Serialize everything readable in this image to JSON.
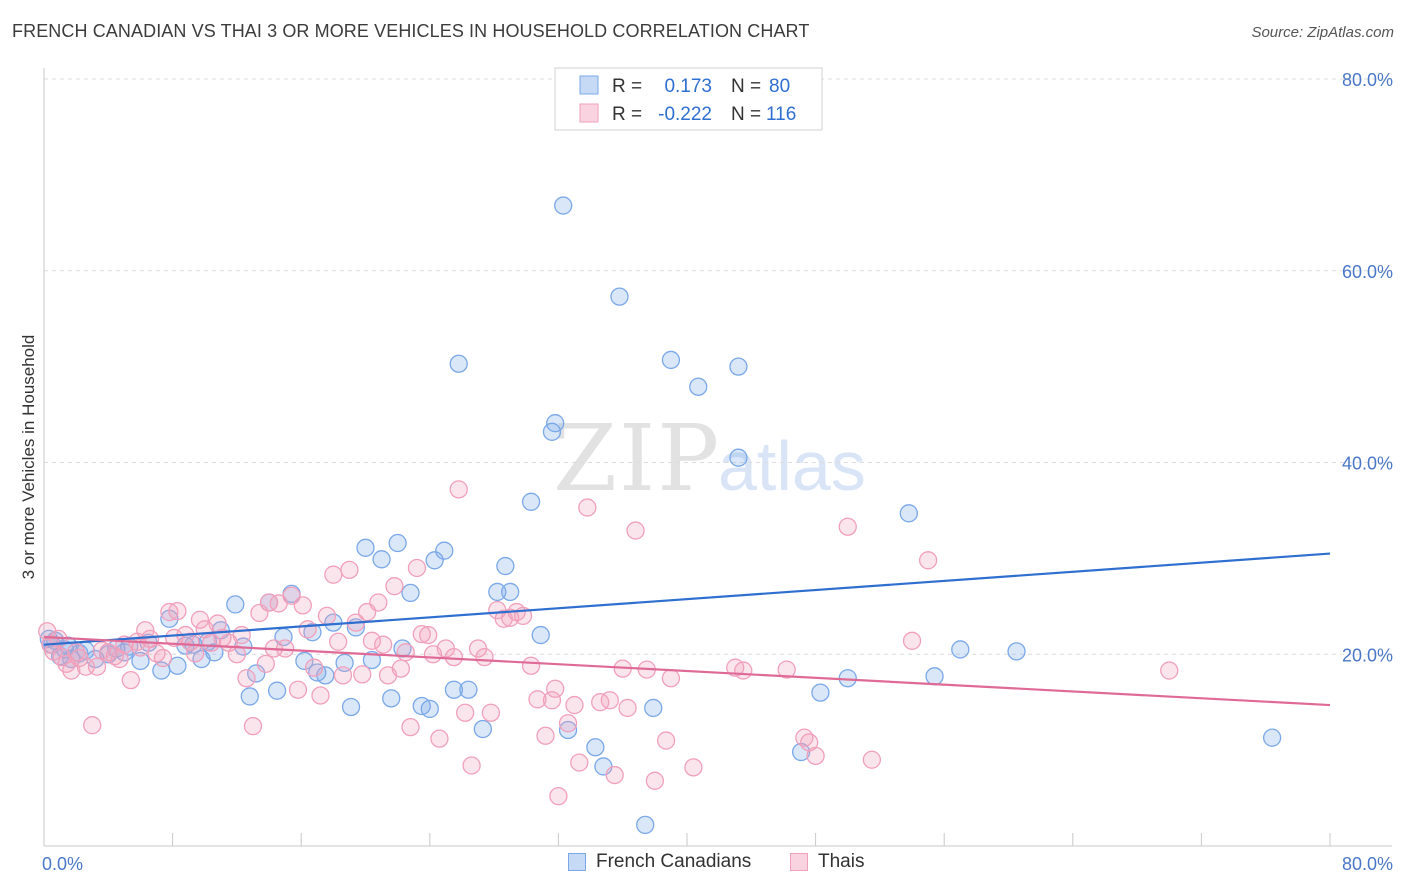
{
  "header": {
    "title": "FRENCH CANADIAN VS THAI 3 OR MORE VEHICLES IN HOUSEHOLD CORRELATION CHART",
    "source": "Source: ZipAtlas.com"
  },
  "watermark": {
    "zip": "ZIP",
    "atlas": "atlas"
  },
  "legend_top": {
    "rows": [
      {
        "r_label": "R =",
        "r_value": "0.173",
        "n_label": "N =",
        "n_value": "80",
        "color": "#7aa8e8"
      },
      {
        "r_label": "R =",
        "r_value": "-0.222",
        "n_label": "N =",
        "n_value": "116",
        "color": "#f1a0bb"
      }
    ]
  },
  "legend_bottom": {
    "items": [
      {
        "label": "French Canadians",
        "color": "#7aa8e8"
      },
      {
        "label": "Thais",
        "color": "#f1a0bb"
      }
    ]
  },
  "chart_data": {
    "type": "scatter",
    "title": "FRENCH CANADIAN VS THAI 3 OR MORE VEHICLES IN HOUSEHOLD CORRELATION CHART",
    "xlabel": "",
    "ylabel": "3 or more Vehicles in Household",
    "xlim": [
      0,
      80
    ],
    "ylim": [
      0,
      80
    ],
    "x_tick_labels": [
      "0.0%",
      "80.0%"
    ],
    "y_tick_labels": [
      "20.0%",
      "40.0%",
      "60.0%",
      "80.0%"
    ],
    "y_ticks": [
      20,
      40,
      60,
      80
    ],
    "grid": true,
    "legend_placement": "top-center",
    "series": [
      {
        "name": "French Canadians",
        "color": "#7aa8e8",
        "line_color": "#2f6fd0",
        "r": 0.173,
        "n": 80,
        "trend": {
          "x": [
            0,
            80
          ],
          "y": [
            21.0,
            30.5
          ]
        },
        "points": [
          [
            0.3,
            21.6
          ],
          [
            0.5,
            21.0
          ],
          [
            0.7,
            21.4
          ],
          [
            1.0,
            19.8
          ],
          [
            1.3,
            20.5
          ],
          [
            1.5,
            20.9
          ],
          [
            1.7,
            19.5
          ],
          [
            2.2,
            20.1
          ],
          [
            2.6,
            20.4
          ],
          [
            3.2,
            19.5
          ],
          [
            4.0,
            20.0
          ],
          [
            4.5,
            20.6
          ],
          [
            5.0,
            20.2
          ],
          [
            5.3,
            20.8
          ],
          [
            6.0,
            19.3
          ],
          [
            6.5,
            21.2
          ],
          [
            7.3,
            18.3
          ],
          [
            7.8,
            23.7
          ],
          [
            8.3,
            18.8
          ],
          [
            8.8,
            20.9
          ],
          [
            9.3,
            21.0
          ],
          [
            9.8,
            19.5
          ],
          [
            10.2,
            21.3
          ],
          [
            10.6,
            20.2
          ],
          [
            11.0,
            22.5
          ],
          [
            11.9,
            25.2
          ],
          [
            12.4,
            20.8
          ],
          [
            12.8,
            15.6
          ],
          [
            13.2,
            18.0
          ],
          [
            14.0,
            25.4
          ],
          [
            14.5,
            16.2
          ],
          [
            14.9,
            21.8
          ],
          [
            15.4,
            26.3
          ],
          [
            16.2,
            19.3
          ],
          [
            16.7,
            22.3
          ],
          [
            17.0,
            18.1
          ],
          [
            17.5,
            17.8
          ],
          [
            18.0,
            23.3
          ],
          [
            18.7,
            19.1
          ],
          [
            19.1,
            14.5
          ],
          [
            19.4,
            22.8
          ],
          [
            20.0,
            31.1
          ],
          [
            20.4,
            19.4
          ],
          [
            21.0,
            29.9
          ],
          [
            21.6,
            15.4
          ],
          [
            22.0,
            31.6
          ],
          [
            22.3,
            20.6
          ],
          [
            22.8,
            26.4
          ],
          [
            23.5,
            14.6
          ],
          [
            24.0,
            14.3
          ],
          [
            24.3,
            29.8
          ],
          [
            24.9,
            30.8
          ],
          [
            25.5,
            16.3
          ],
          [
            25.8,
            50.3
          ],
          [
            26.4,
            16.3
          ],
          [
            27.3,
            12.2
          ],
          [
            28.2,
            26.5
          ],
          [
            28.7,
            29.2
          ],
          [
            29.0,
            26.5
          ],
          [
            30.3,
            35.9
          ],
          [
            30.9,
            22.0
          ],
          [
            31.6,
            43.2
          ],
          [
            31.8,
            44.1
          ],
          [
            32.3,
            66.8
          ],
          [
            32.6,
            12.1
          ],
          [
            34.3,
            10.3
          ],
          [
            34.8,
            8.3
          ],
          [
            35.8,
            57.3
          ],
          [
            37.4,
            2.2
          ],
          [
            37.9,
            14.4
          ],
          [
            39.0,
            50.7
          ],
          [
            40.7,
            47.9
          ],
          [
            43.2,
            40.5
          ],
          [
            43.2,
            50.0
          ],
          [
            47.1,
            9.8
          ],
          [
            48.3,
            16.0
          ],
          [
            50.0,
            17.5
          ],
          [
            53.8,
            34.7
          ],
          [
            55.4,
            17.7
          ],
          [
            57.0,
            20.5
          ],
          [
            60.5,
            20.3
          ],
          [
            76.4,
            11.3
          ]
        ]
      },
      {
        "name": "Thais",
        "color": "#f1a0bb",
        "line_color": "#e06a96",
        "r": -0.222,
        "n": 116,
        "trend": {
          "x": [
            0,
            80
          ],
          "y": [
            21.8,
            14.7
          ]
        },
        "points": [
          [
            0.2,
            22.4
          ],
          [
            0.4,
            21.0
          ],
          [
            0.6,
            20.3
          ],
          [
            0.9,
            21.6
          ],
          [
            1.1,
            19.7
          ],
          [
            1.4,
            19.0
          ],
          [
            1.7,
            18.3
          ],
          [
            2.0,
            20.2
          ],
          [
            2.2,
            19.6
          ],
          [
            2.6,
            18.7
          ],
          [
            3.0,
            12.6
          ],
          [
            3.3,
            18.7
          ],
          [
            3.6,
            20.4
          ],
          [
            4.0,
            20.2
          ],
          [
            4.4,
            19.8
          ],
          [
            4.7,
            19.5
          ],
          [
            5.0,
            21.0
          ],
          [
            5.4,
            17.3
          ],
          [
            5.8,
            21.3
          ],
          [
            6.0,
            20.7
          ],
          [
            6.3,
            22.5
          ],
          [
            6.6,
            21.6
          ],
          [
            7.0,
            20.1
          ],
          [
            7.4,
            19.6
          ],
          [
            7.8,
            24.4
          ],
          [
            8.1,
            21.7
          ],
          [
            8.3,
            24.5
          ],
          [
            8.8,
            22.0
          ],
          [
            9.1,
            21.3
          ],
          [
            9.4,
            20.1
          ],
          [
            9.7,
            23.6
          ],
          [
            10.0,
            22.6
          ],
          [
            10.4,
            21.2
          ],
          [
            10.8,
            23.2
          ],
          [
            11.1,
            21.7
          ],
          [
            11.5,
            21.2
          ],
          [
            12.0,
            20.0
          ],
          [
            12.3,
            22.0
          ],
          [
            12.6,
            17.5
          ],
          [
            13.0,
            12.5
          ],
          [
            13.4,
            24.3
          ],
          [
            13.8,
            19.0
          ],
          [
            14.0,
            25.4
          ],
          [
            14.3,
            20.6
          ],
          [
            14.6,
            25.3
          ],
          [
            15.0,
            20.6
          ],
          [
            15.4,
            26.1
          ],
          [
            15.8,
            16.3
          ],
          [
            16.1,
            25.1
          ],
          [
            16.4,
            22.6
          ],
          [
            16.8,
            18.6
          ],
          [
            17.2,
            15.7
          ],
          [
            17.6,
            24.0
          ],
          [
            18.0,
            28.3
          ],
          [
            18.3,
            21.3
          ],
          [
            18.6,
            17.8
          ],
          [
            19.0,
            28.8
          ],
          [
            19.4,
            23.3
          ],
          [
            19.8,
            17.9
          ],
          [
            20.1,
            24.4
          ],
          [
            20.4,
            21.4
          ],
          [
            20.8,
            25.4
          ],
          [
            21.1,
            21.0
          ],
          [
            21.4,
            17.8
          ],
          [
            21.8,
            27.1
          ],
          [
            22.2,
            18.5
          ],
          [
            22.5,
            20.2
          ],
          [
            22.8,
            12.4
          ],
          [
            23.2,
            29.0
          ],
          [
            23.5,
            22.1
          ],
          [
            23.9,
            22.0
          ],
          [
            24.2,
            20.0
          ],
          [
            24.6,
            11.2
          ],
          [
            25.0,
            20.6
          ],
          [
            25.5,
            19.7
          ],
          [
            25.8,
            37.2
          ],
          [
            26.2,
            13.9
          ],
          [
            26.6,
            8.4
          ],
          [
            27.0,
            20.6
          ],
          [
            27.4,
            19.7
          ],
          [
            27.8,
            13.9
          ],
          [
            28.2,
            24.6
          ],
          [
            28.6,
            23.7
          ],
          [
            29.0,
            23.8
          ],
          [
            29.4,
            24.4
          ],
          [
            29.8,
            24.0
          ],
          [
            30.3,
            18.8
          ],
          [
            30.7,
            15.3
          ],
          [
            31.2,
            11.5
          ],
          [
            31.6,
            15.2
          ],
          [
            31.8,
            16.4
          ],
          [
            32.0,
            5.2
          ],
          [
            32.6,
            12.8
          ],
          [
            33.0,
            14.7
          ],
          [
            33.3,
            8.7
          ],
          [
            33.8,
            35.3
          ],
          [
            34.6,
            15.0
          ],
          [
            35.2,
            15.2
          ],
          [
            35.5,
            7.4
          ],
          [
            36.0,
            18.5
          ],
          [
            36.3,
            14.4
          ],
          [
            36.8,
            32.9
          ],
          [
            37.5,
            18.4
          ],
          [
            38.0,
            6.8
          ],
          [
            38.7,
            11.0
          ],
          [
            39.0,
            17.5
          ],
          [
            40.4,
            8.2
          ],
          [
            43.0,
            18.6
          ],
          [
            43.5,
            18.3
          ],
          [
            46.2,
            18.4
          ],
          [
            47.3,
            11.3
          ],
          [
            47.6,
            10.8
          ],
          [
            48.0,
            9.4
          ],
          [
            50.0,
            33.3
          ],
          [
            51.5,
            9.0
          ],
          [
            54.0,
            21.4
          ],
          [
            55.0,
            29.8
          ],
          [
            70.0,
            18.3
          ]
        ]
      }
    ]
  }
}
